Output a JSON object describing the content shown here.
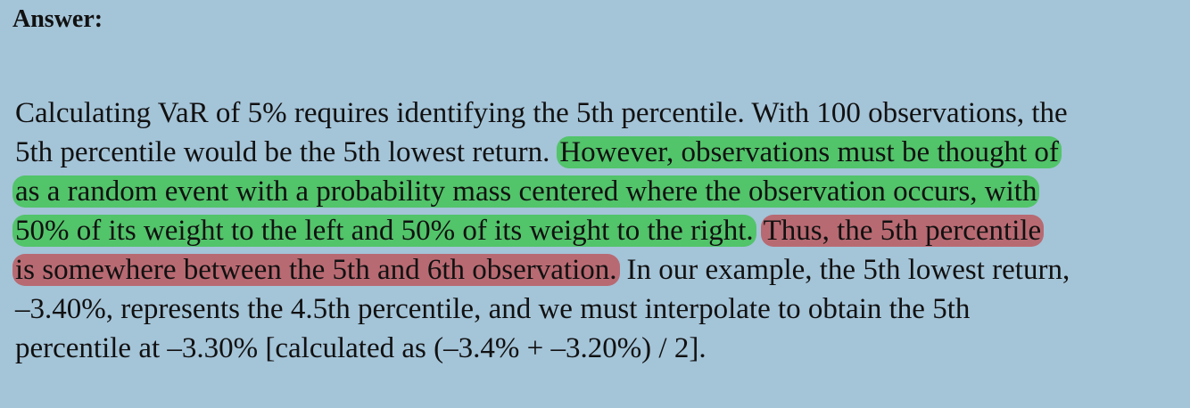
{
  "heading": "Answer:",
  "highlight_colors": {
    "green": "#52c46a",
    "red": "#b86a72"
  },
  "lines": [
    {
      "segments": [
        {
          "text": "Calculating VaR of 5% requires identifying the 5th percentile. With 100 observations, the"
        }
      ]
    },
    {
      "segments": [
        {
          "text": "5th percentile would be the 5th lowest return."
        },
        {
          "text": "However, observations must be thought of",
          "highlight": "green"
        }
      ]
    },
    {
      "segments": [
        {
          "text": "as a random event with a probability mass centered where the observation occurs, with",
          "highlight": "green"
        }
      ]
    },
    {
      "segments": [
        {
          "text": "50% of its weight to the left and 50% of its weight to the right.",
          "highlight": "green"
        },
        {
          "text": "Thus, the 5th percentile",
          "highlight": "red"
        }
      ]
    },
    {
      "segments": [
        {
          "text": "is somewhere between the 5th and 6th observation.",
          "highlight": "red"
        },
        {
          "text": "In our example, the 5th lowest return,"
        }
      ]
    },
    {
      "segments": [
        {
          "text": "–3.40%, represents the 4.5th percentile, and we must interpolate to obtain the 5th"
        }
      ]
    },
    {
      "segments": [
        {
          "text": "percentile at –3.30% [calculated as (–3.4% + –3.20%) / 2]."
        }
      ]
    }
  ]
}
